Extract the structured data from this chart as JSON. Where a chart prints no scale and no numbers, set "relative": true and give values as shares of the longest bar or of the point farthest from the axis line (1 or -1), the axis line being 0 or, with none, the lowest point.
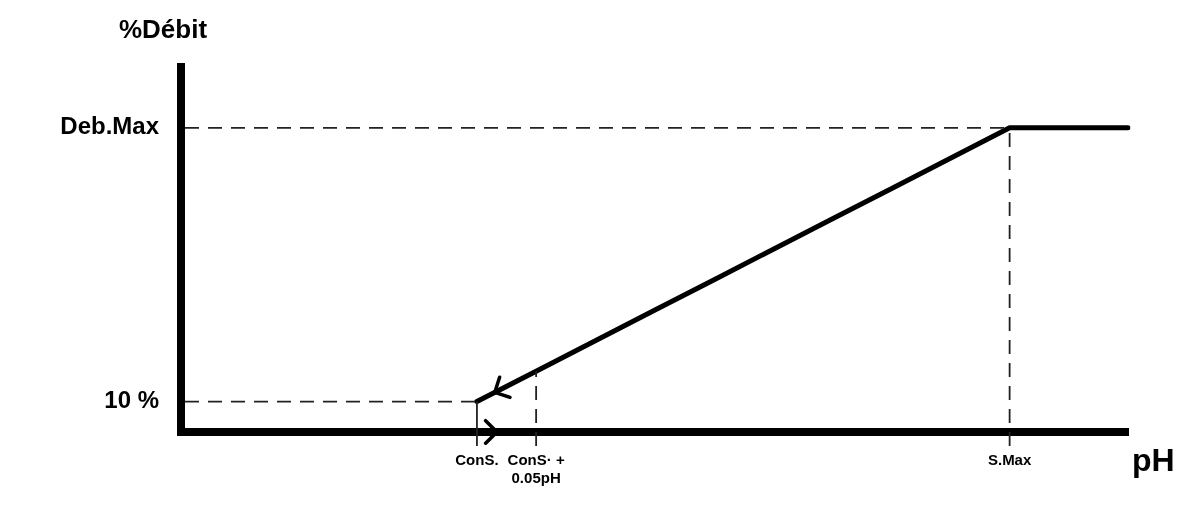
{
  "chart_data": {
    "type": "line",
    "xlabel": "pH",
    "ylabel": "%Débit",
    "relative": true,
    "categories": [
      null,
      null,
      null,
      null,
      null,
      "ConS.",
      "ConS· + 0.05pH",
      null,
      null,
      null,
      null,
      null,
      null,
      null,
      "S.Max",
      null,
      null
    ],
    "series": [
      {
        "color": "#000000",
        "values": [
          null,
          null,
          null,
          null,
          null,
          0.1,
          0.2,
          0.3,
          0.4,
          0.5,
          0.6,
          0.7,
          0.8,
          0.9,
          1,
          1,
          1
        ]
      }
    ],
    "ref_lines": [
      {
        "axis": "y",
        "value": 1,
        "label": "Deb.Max",
        "line_style": "dashed"
      },
      {
        "axis": "y",
        "value": 0.1,
        "label": "10 %",
        "line_style": "dashed"
      },
      {
        "axis": "x",
        "value": "ConS.",
        "line_style": "solid"
      },
      {
        "axis": "x",
        "value": "ConS· + 0.05pH",
        "line_style": "dashed"
      },
      {
        "axis": "x",
        "value": "S.Max",
        "line_style": "dashed"
      }
    ],
    "grid": false,
    "legend": false,
    "marker": "none",
    "line_style": "solid"
  }
}
